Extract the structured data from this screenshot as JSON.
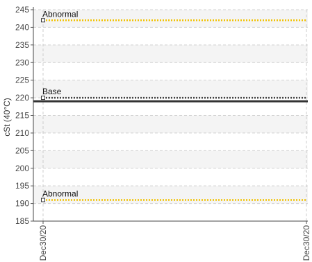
{
  "chart_data": {
    "type": "line",
    "title": "",
    "xlabel": "",
    "ylabel": "cSt (40°C)",
    "ylim": [
      185,
      245
    ],
    "y_ticks": [
      185,
      190,
      195,
      200,
      205,
      210,
      215,
      220,
      225,
      230,
      235,
      240,
      245
    ],
    "x_ticks": [
      "Dec30/20",
      "Dec30/20"
    ],
    "grid": true,
    "series": [
      {
        "name": "Abnormal",
        "value": 242,
        "color": "#f2c200",
        "style": "dotted"
      },
      {
        "name": "Base",
        "value": 220,
        "color": "#444444",
        "style": "dotted"
      },
      {
        "name": "",
        "value": 219,
        "color": "#333333",
        "style": "solid"
      },
      {
        "name": "Abnormal",
        "value": 191,
        "color": "#f2c200",
        "style": "dotted"
      }
    ]
  }
}
